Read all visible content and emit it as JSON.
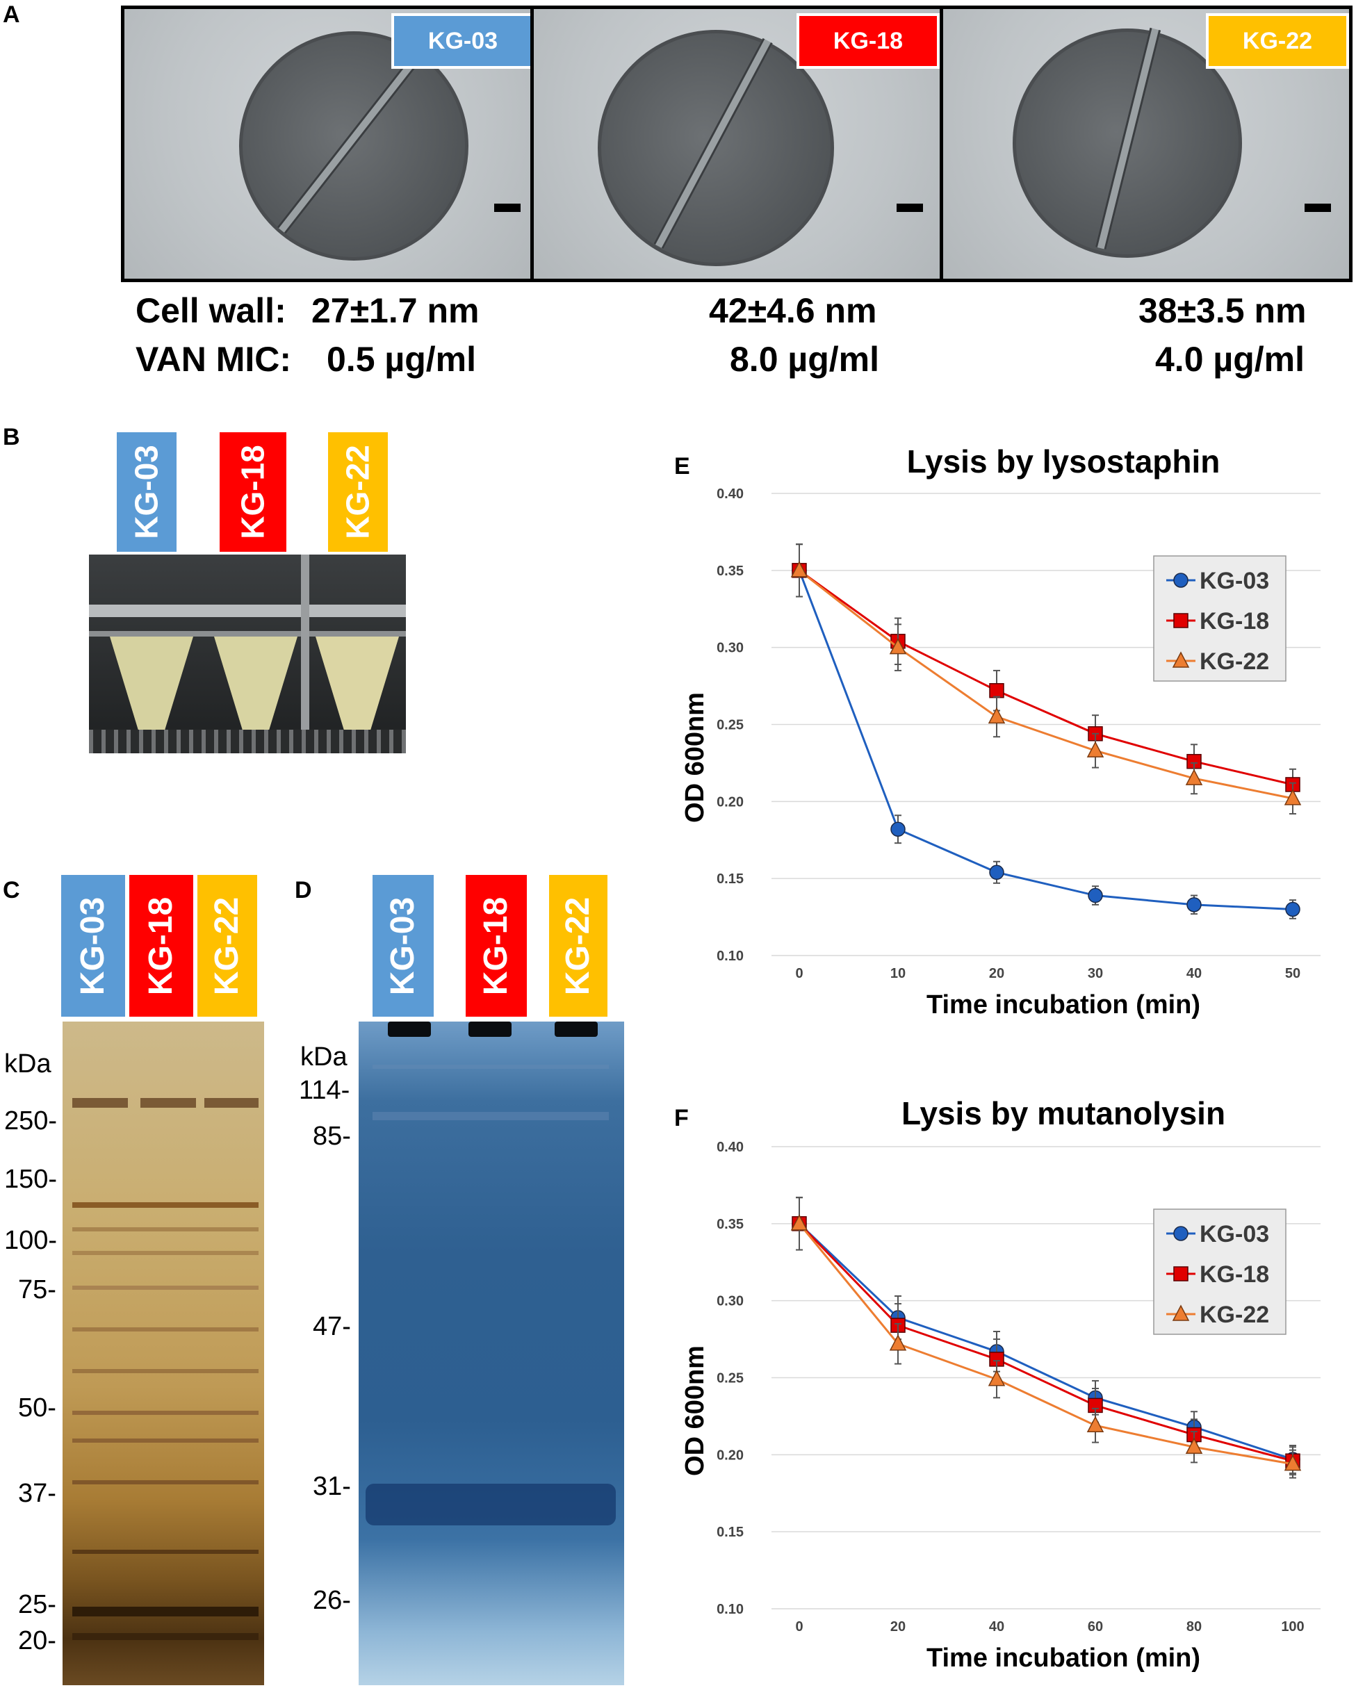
{
  "panels": {
    "a": "A",
    "b": "B",
    "c": "C",
    "d": "D",
    "e": "E",
    "f": "F"
  },
  "strains": [
    {
      "name": "KG-03",
      "color": "#5b9bd5"
    },
    {
      "name": "KG-18",
      "color": "#ff0000"
    },
    {
      "name": "KG-22",
      "color": "#ffc000"
    }
  ],
  "panel_a": {
    "row1_label": "Cell wall:",
    "row2_label": "VAN MIC:",
    "cell_wall": [
      "27±1.7 nm",
      "42±4.6 nm",
      "38±3.5 nm"
    ],
    "van_mic": [
      "0.5 µg/ml",
      "8.0 µg/ml",
      "4.0 µg/ml"
    ]
  },
  "panel_c": {
    "unit": "kDa",
    "markers": [
      "250-",
      "150-",
      "100-",
      "75-",
      "50-",
      "37-",
      "25-",
      "20-"
    ]
  },
  "panel_d": {
    "unit": "kDa",
    "markers": [
      "114-",
      "85-",
      "47-",
      "31-",
      "26-"
    ]
  },
  "chart_data": [
    {
      "type": "line",
      "title": "Lysis by lysostaphin",
      "xlabel": "Time incubation (min)",
      "ylabel": "OD 600nm",
      "x": [
        0,
        10,
        20,
        30,
        40,
        50
      ],
      "x_tick_labels": [
        "0",
        "10",
        "20",
        "30",
        "40",
        "50"
      ],
      "ylim": [
        0.1,
        0.4
      ],
      "y_tick_labels": [
        "0.10",
        "0.15",
        "0.20",
        "0.25",
        "0.30",
        "0.35",
        "0.40"
      ],
      "grid": true,
      "legend": "top-right",
      "series": [
        {
          "name": "KG-03",
          "color": "#1f5fbf",
          "marker": "circle",
          "values": [
            0.35,
            0.182,
            0.154,
            0.139,
            0.133,
            0.13
          ],
          "errors": [
            0.017,
            0.009,
            0.007,
            0.006,
            0.006,
            0.006
          ]
        },
        {
          "name": "KG-18",
          "color": "#e00000",
          "marker": "square",
          "values": [
            0.35,
            0.304,
            0.272,
            0.244,
            0.226,
            0.211
          ],
          "errors": [
            0.017,
            0.015,
            0.013,
            0.012,
            0.011,
            0.01
          ]
        },
        {
          "name": "KG-22",
          "color": "#ed7d31",
          "marker": "triangle",
          "values": [
            0.35,
            0.3,
            0.255,
            0.233,
            0.215,
            0.202
          ],
          "errors": [
            0.017,
            0.015,
            0.013,
            0.011,
            0.01,
            0.01
          ]
        }
      ]
    },
    {
      "type": "line",
      "title": "Lysis by mutanolysin",
      "xlabel": "Time incubation (min)",
      "ylabel": "OD 600nm",
      "x": [
        0,
        20,
        40,
        60,
        80,
        100
      ],
      "x_tick_labels": [
        "0",
        "20",
        "40",
        "60",
        "80",
        "100"
      ],
      "ylim": [
        0.1,
        0.4
      ],
      "y_tick_labels": [
        "0.10",
        "0.15",
        "0.20",
        "0.25",
        "0.30",
        "0.35",
        "0.40"
      ],
      "grid": true,
      "legend": "top-right",
      "series": [
        {
          "name": "KG-03",
          "color": "#1f5fbf",
          "marker": "circle",
          "values": [
            0.35,
            0.289,
            0.267,
            0.237,
            0.218,
            0.197
          ],
          "errors": [
            0.017,
            0.014,
            0.013,
            0.011,
            0.01,
            0.009
          ]
        },
        {
          "name": "KG-18",
          "color": "#e00000",
          "marker": "square",
          "values": [
            0.35,
            0.284,
            0.262,
            0.232,
            0.213,
            0.196
          ],
          "errors": [
            0.017,
            0.014,
            0.013,
            0.011,
            0.01,
            0.009
          ]
        },
        {
          "name": "KG-22",
          "color": "#ed7d31",
          "marker": "triangle",
          "values": [
            0.35,
            0.272,
            0.249,
            0.219,
            0.205,
            0.194
          ],
          "errors": [
            0.017,
            0.013,
            0.012,
            0.011,
            0.01,
            0.009
          ]
        }
      ]
    }
  ]
}
